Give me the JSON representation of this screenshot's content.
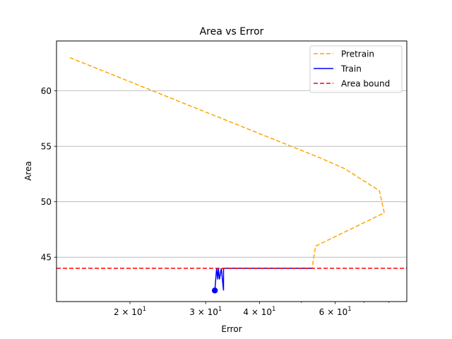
{
  "chart_data": {
    "type": "line",
    "title": "Area vs Error",
    "xlabel": "Error",
    "ylabel": "Area",
    "xscale": "log",
    "xlim": [
      13.5,
      88
    ],
    "ylim": [
      41,
      64.5
    ],
    "grid": "y",
    "legend_position": "top-right",
    "x_ticks": [
      {
        "value": 20,
        "label": "2 × 10",
        "exp": "1"
      },
      {
        "value": 30,
        "label": "3 × 10",
        "exp": "1"
      },
      {
        "value": 40,
        "label": "4 × 10",
        "exp": "1"
      },
      {
        "value": 60,
        "label": "6 × 10",
        "exp": "1"
      }
    ],
    "x_minor_ticks": [
      50,
      70,
      80
    ],
    "y_ticks": [
      45,
      50,
      55,
      60
    ],
    "series": [
      {
        "name": "Pretrain",
        "color": "#ffa500",
        "dash": "dashed",
        "x": [
          14.5,
          55,
          63,
          76,
          78,
          54,
          53,
          35,
          33
        ],
        "y": [
          63,
          54,
          53,
          51,
          49,
          46,
          44,
          44,
          44
        ]
      },
      {
        "name": "Train",
        "color": "#0000ff",
        "dash": "solid",
        "x": [
          53,
          33,
          33,
          32.6,
          32.3,
          32.1,
          32.0,
          31.8,
          31.5
        ],
        "y": [
          44,
          44,
          42,
          44,
          43,
          44,
          43,
          44,
          42
        ],
        "marker_at_end": true
      },
      {
        "name": "Area bound",
        "color": "#ff0000",
        "dash": "dashed",
        "hline": 44
      }
    ]
  }
}
